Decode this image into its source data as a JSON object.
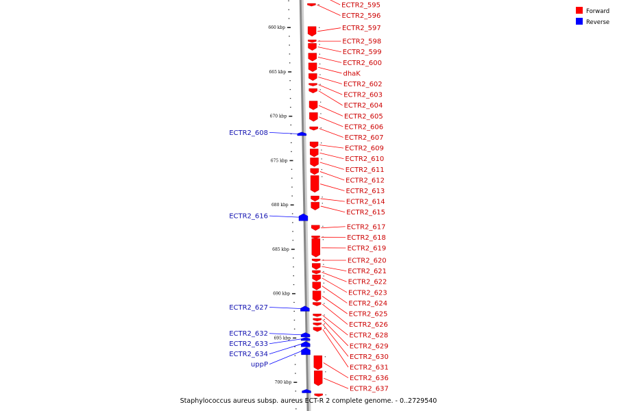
{
  "caption": "Staphylococcus aureus subsp. aureus ECT-R 2 complete genome. - 0..2729540",
  "legend": [
    {
      "label": "Forward",
      "color": "#ff0000"
    },
    {
      "label": "Reverse",
      "color": "#0000ff"
    }
  ],
  "colors": {
    "forward": "#ff0000",
    "reverse": "#0000ff",
    "forward_label": "#cc0000",
    "reverse_label": "#1010b0",
    "axis": "#888888"
  },
  "axis": {
    "tick_labels": [
      "660 kbp",
      "665 kbp",
      "670 kbp",
      "675 kbp",
      "680 kbp",
      "685 kbp",
      "690 kbp",
      "695 kbp",
      "700 kbp"
    ]
  },
  "forward_genes": [
    {
      "name": "ECTR2_595",
      "start": 655.4,
      "end": 656.9
    },
    {
      "name": "ECTR2_596",
      "start": 657.3,
      "end": 657.6
    },
    {
      "name": "ECTR2_597",
      "start": 659.9,
      "end": 661.0
    },
    {
      "name": "ECTR2_598",
      "start": 661.4,
      "end": 661.6
    },
    {
      "name": "ECTR2_599",
      "start": 661.8,
      "end": 662.6
    },
    {
      "name": "ECTR2_600",
      "start": 662.9,
      "end": 663.8
    },
    {
      "name": "dhaK",
      "start": 664.0,
      "end": 665.0
    },
    {
      "name": "ECTR2_602",
      "start": 665.2,
      "end": 666.0
    },
    {
      "name": "ECTR2_603",
      "start": 666.3,
      "end": 666.6
    },
    {
      "name": "ECTR2_604",
      "start": 666.9,
      "end": 667.4
    },
    {
      "name": "ECTR2_605",
      "start": 668.3,
      "end": 669.3
    },
    {
      "name": "ECTR2_606",
      "start": 669.6,
      "end": 670.6
    },
    {
      "name": "ECTR2_607",
      "start": 671.2,
      "end": 671.6
    },
    {
      "name": "ECTR2_609",
      "start": 672.9,
      "end": 673.6
    },
    {
      "name": "ECTR2_610",
      "start": 673.7,
      "end": 674.6
    },
    {
      "name": "ECTR2_611",
      "start": 674.7,
      "end": 675.7
    },
    {
      "name": "ECTR2_612",
      "start": 675.9,
      "end": 676.6
    },
    {
      "name": "ECTR2_613",
      "start": 676.7,
      "end": 678.6
    },
    {
      "name": "ECTR2_614",
      "start": 679.0,
      "end": 679.6
    },
    {
      "name": "ECTR2_615",
      "start": 679.7,
      "end": 680.6
    },
    {
      "name": "ECTR2_617",
      "start": 682.3,
      "end": 682.9
    },
    {
      "name": "ECTR2_618",
      "start": 683.5,
      "end": 683.7
    },
    {
      "name": "ECTR2_619",
      "start": 683.8,
      "end": 685.9
    },
    {
      "name": "ECTR2_620",
      "start": 686.1,
      "end": 686.4
    },
    {
      "name": "ECTR2_621",
      "start": 686.6,
      "end": 687.3
    },
    {
      "name": "ECTR2_622",
      "start": 687.4,
      "end": 687.8
    },
    {
      "name": "ECTR2_623",
      "start": 687.9,
      "end": 688.6
    },
    {
      "name": "ECTR2_624",
      "start": 688.7,
      "end": 689.6
    },
    {
      "name": "ECTR2_625",
      "start": 689.7,
      "end": 690.9
    },
    {
      "name": "ECTR2_626",
      "start": 691.0,
      "end": 691.4
    },
    {
      "name": "ECTR2_628",
      "start": 692.3,
      "end": 692.6
    },
    {
      "name": "ECTR2_629",
      "start": 692.8,
      "end": 693.1
    },
    {
      "name": "ECTR2_630",
      "start": 693.3,
      "end": 693.6
    },
    {
      "name": "ECTR2_631",
      "start": 693.8,
      "end": 694.3
    },
    {
      "name": "ECTR2_636",
      "start": 697.0,
      "end": 698.6
    },
    {
      "name": "ECTR2_637",
      "start": 698.7,
      "end": 700.4
    },
    {
      "name": "",
      "start": 701.3,
      "end": 701.6
    }
  ],
  "reverse_genes": [
    {
      "name": "",
      "start": 654.9,
      "end": 655.4
    },
    {
      "name": "ECTR2_608",
      "start": 671.8,
      "end": 672.2
    },
    {
      "name": "ECTR2_616",
      "start": 681.0,
      "end": 681.8
    },
    {
      "name": "ECTR2_627",
      "start": 691.4,
      "end": 692.0
    },
    {
      "name": "ECTR2_632",
      "start": 694.4,
      "end": 694.9
    },
    {
      "name": "ECTR2_633",
      "start": 694.95,
      "end": 695.3
    },
    {
      "name": "ECTR2_634",
      "start": 695.4,
      "end": 696.0
    },
    {
      "name": "uppP",
      "start": 696.1,
      "end": 696.9
    },
    {
      "name": "",
      "start": 700.8,
      "end": 701.2
    }
  ]
}
